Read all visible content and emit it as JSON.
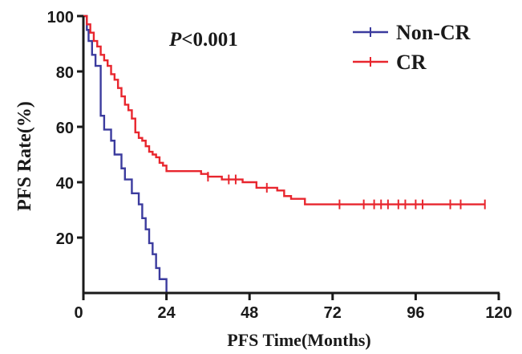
{
  "chart_data": {
    "type": "line",
    "step": true,
    "xlabel": "PFS Time(Months)",
    "ylabel": "PFS Rate(%)",
    "annotation": {
      "italic": "P",
      "rest": "<0.001"
    },
    "xlim": [
      0,
      120
    ],
    "ylim": [
      0,
      100
    ],
    "x_ticks": [
      "0",
      "24",
      "48",
      "72",
      "96",
      "120"
    ],
    "y_ticks": [
      "20",
      "40",
      "60",
      "80",
      "100"
    ],
    "legend_position": "top-right",
    "series": [
      {
        "name": "Non-CR",
        "color": "#3b3b9e",
        "x": [
          0,
          1,
          1.5,
          2.5,
          3.5,
          5,
          6,
          8,
          9,
          11,
          12,
          13,
          14,
          16,
          17,
          18,
          19,
          20,
          21,
          22,
          23,
          24
        ],
        "y": [
          100,
          95,
          91,
          86,
          82,
          64,
          59,
          55,
          50,
          45,
          41,
          41,
          36,
          32,
          27,
          23,
          18,
          14,
          9,
          5,
          5,
          0
        ]
      },
      {
        "name": "CR",
        "color": "#e8262e",
        "x": [
          0,
          1,
          2,
          3,
          4,
          5,
          6,
          7,
          8,
          9,
          10,
          11,
          12,
          13,
          14,
          15,
          16,
          17,
          18,
          19,
          20,
          21,
          22,
          23,
          24,
          34,
          36,
          40,
          46,
          50,
          56,
          58,
          60,
          64,
          116
        ],
        "y": [
          100,
          97,
          94,
          91,
          89,
          86,
          84,
          82,
          79,
          77,
          74,
          71,
          68,
          66,
          63,
          58,
          56,
          55,
          53,
          51,
          50,
          49,
          47,
          46,
          44,
          43,
          42,
          41,
          40,
          38,
          37,
          35,
          34,
          32,
          32
        ],
        "censor_x": [
          36,
          42,
          44,
          53,
          74,
          81,
          84,
          86,
          88,
          91,
          93,
          96,
          98,
          106,
          109,
          116
        ]
      }
    ]
  }
}
